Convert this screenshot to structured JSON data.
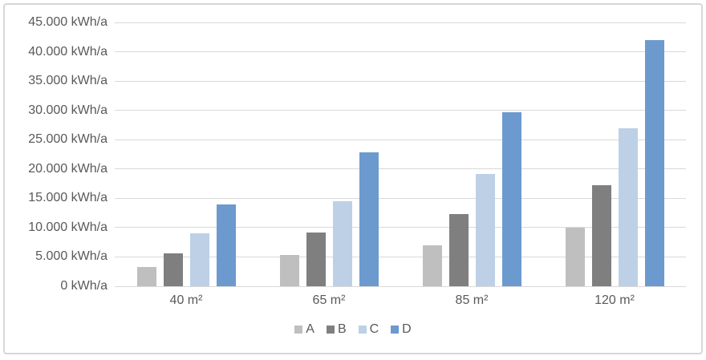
{
  "chart_data": {
    "type": "bar",
    "title": "",
    "xlabel": "",
    "ylabel": "",
    "unit": "kWh/a",
    "categories": [
      "40 m²",
      "65 m²",
      "85 m²",
      "120 m²"
    ],
    "series": [
      {
        "name": "A",
        "color": "#bfbfbf",
        "values": [
          3300,
          5400,
          7000,
          10000
        ]
      },
      {
        "name": "B",
        "color": "#7f7f7f",
        "values": [
          5600,
          9200,
          12300,
          17200
        ]
      },
      {
        "name": "C",
        "color": "#bdd0e6",
        "values": [
          9000,
          14500,
          19200,
          26900
        ]
      },
      {
        "name": "D",
        "color": "#6c9ace",
        "values": [
          14000,
          22800,
          29700,
          42000
        ]
      }
    ],
    "ylim": [
      0,
      45000
    ],
    "y_tick_step": 5000,
    "y_tick_labels": [
      "0 kWh/a",
      "5.000 kWh/a",
      "10.000 kWh/a",
      "15.000 kWh/a",
      "20.000 kWh/a",
      "25.000 kWh/a",
      "30.000 kWh/a",
      "35.000 kWh/a",
      "40.000 kWh/a",
      "45.000 kWh/a"
    ],
    "grid": true,
    "legend_position": "bottom"
  },
  "colors": {
    "grid": "#d9d9d9",
    "axis_text": "#595959",
    "frame_border": "#d7d7d7",
    "background": "#ffffff"
  }
}
